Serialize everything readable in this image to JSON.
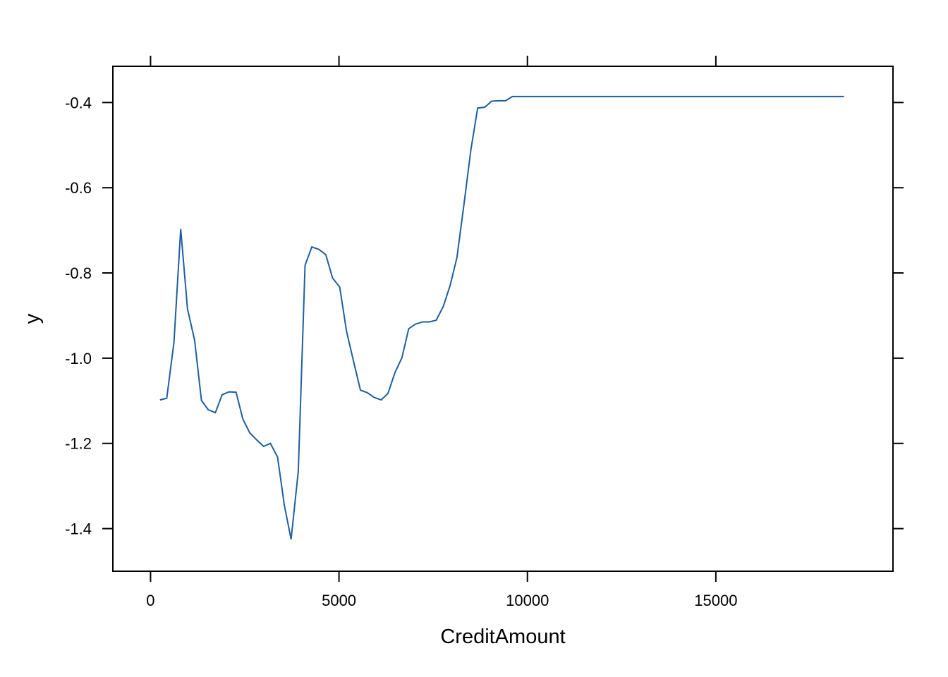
{
  "chart_data": {
    "type": "line",
    "title": "",
    "xlabel": "CreditAmount",
    "ylabel": "y",
    "xlim": [
      -1000,
      19700
    ],
    "ylim": [
      -1.5,
      -0.315
    ],
    "x_ticks": [
      0,
      5000,
      10000,
      15000
    ],
    "x_tick_labels": [
      "0",
      "5000",
      "10000",
      "15000"
    ],
    "y_ticks": [
      -1.4,
      -1.2,
      -1.0,
      -0.8,
      -0.6,
      -0.4
    ],
    "y_tick_labels": [
      "-1.4",
      "-1.2",
      "-1.0",
      "-0.8",
      "-0.6",
      "-0.4"
    ],
    "grid": false,
    "line_color": "#1f5fa0",
    "series": [
      {
        "x": [
          250,
          430,
          620,
          800,
          980,
          1170,
          1350,
          1530,
          1720,
          1900,
          2080,
          2270,
          2450,
          2630,
          2820,
          3000,
          3180,
          3370,
          3550,
          3730,
          3920,
          4100,
          4280,
          4470,
          4650,
          4830,
          5020,
          5200,
          5380,
          5570,
          5750,
          5930,
          6120,
          6300,
          6480,
          6670,
          6850,
          7030,
          7220,
          7400,
          7580,
          7770,
          7950,
          8130,
          8320,
          8500,
          8680,
          8870,
          9050,
          9230,
          9420,
          9600,
          10000,
          12000,
          14000,
          16000,
          18400
        ],
        "y": [
          -1.098,
          -1.094,
          -0.963,
          -0.697,
          -0.884,
          -0.958,
          -1.099,
          -1.121,
          -1.128,
          -1.086,
          -1.079,
          -1.08,
          -1.143,
          -1.175,
          -1.192,
          -1.207,
          -1.2,
          -1.232,
          -1.345,
          -1.425,
          -1.265,
          -0.782,
          -0.739,
          -0.745,
          -0.757,
          -0.812,
          -0.833,
          -0.937,
          -1.005,
          -1.075,
          -1.081,
          -1.092,
          -1.098,
          -1.083,
          -1.035,
          -0.999,
          -0.931,
          -0.92,
          -0.915,
          -0.915,
          -0.911,
          -0.878,
          -0.829,
          -0.764,
          -0.636,
          -0.511,
          -0.413,
          -0.411,
          -0.397,
          -0.396,
          -0.396,
          -0.386,
          -0.386,
          -0.386,
          -0.386,
          -0.386,
          -0.386
        ]
      }
    ]
  }
}
